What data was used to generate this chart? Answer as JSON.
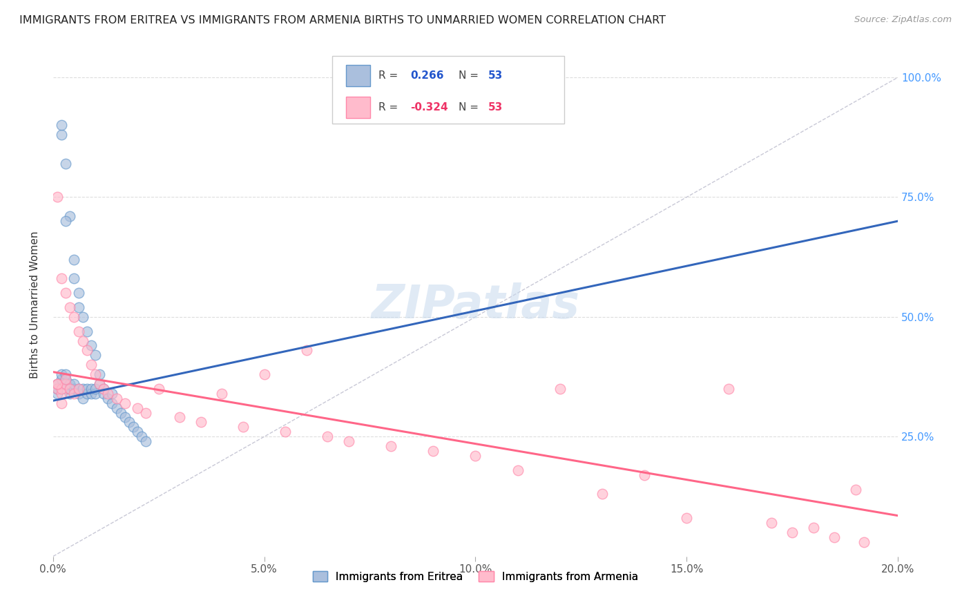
{
  "title": "IMMIGRANTS FROM ERITREA VS IMMIGRANTS FROM ARMENIA BIRTHS TO UNMARRIED WOMEN CORRELATION CHART",
  "source": "Source: ZipAtlas.com",
  "ylabel": "Births to Unmarried Women",
  "xlim": [
    0.0,
    0.2
  ],
  "ylim": [
    0.0,
    1.05
  ],
  "xtick_vals": [
    0.0,
    0.05,
    0.1,
    0.15,
    0.2
  ],
  "xticklabels": [
    "0.0%",
    "5.0%",
    "10.0%",
    "15.0%",
    "20.0%"
  ],
  "ytick_vals": [
    0.25,
    0.5,
    0.75,
    1.0
  ],
  "yticklabels_right": [
    "25.0%",
    "50.0%",
    "75.0%",
    "100.0%"
  ],
  "legend_labels": [
    "Immigrants from Eritrea",
    "Immigrants from Armenia"
  ],
  "R_blue": "0.266",
  "R_pink": "-0.324",
  "N_blue": "53",
  "N_pink": "53",
  "blue_fill": "#AABFDD",
  "blue_edge": "#6699CC",
  "pink_fill": "#FFBBCC",
  "pink_edge": "#FF88AA",
  "blue_line_color": "#3366BB",
  "pink_line_color": "#FF6688",
  "ref_line_color": "#BBBBCC",
  "watermark": "ZIPatlas",
  "background_color": "#FFFFFF",
  "grid_color": "#DDDDDD",
  "blue_scatter_x": [
    0.001,
    0.001,
    0.002,
    0.002,
    0.002,
    0.002,
    0.003,
    0.003,
    0.003,
    0.003,
    0.003,
    0.004,
    0.004,
    0.004,
    0.004,
    0.005,
    0.005,
    0.005,
    0.005,
    0.006,
    0.006,
    0.006,
    0.006,
    0.007,
    0.007,
    0.007,
    0.008,
    0.008,
    0.008,
    0.009,
    0.009,
    0.009,
    0.01,
    0.01,
    0.01,
    0.011,
    0.011,
    0.012,
    0.012,
    0.013,
    0.014,
    0.014,
    0.015,
    0.016,
    0.017,
    0.018,
    0.019,
    0.02,
    0.021,
    0.022,
    0.001,
    0.001,
    0.003
  ],
  "blue_scatter_y": [
    0.35,
    0.36,
    0.88,
    0.9,
    0.37,
    0.38,
    0.82,
    0.35,
    0.36,
    0.37,
    0.38,
    0.34,
    0.35,
    0.36,
    0.71,
    0.62,
    0.35,
    0.36,
    0.58,
    0.55,
    0.34,
    0.35,
    0.52,
    0.33,
    0.5,
    0.35,
    0.34,
    0.47,
    0.35,
    0.44,
    0.34,
    0.35,
    0.42,
    0.34,
    0.35,
    0.38,
    0.36,
    0.35,
    0.34,
    0.33,
    0.32,
    0.34,
    0.31,
    0.3,
    0.29,
    0.28,
    0.27,
    0.26,
    0.25,
    0.24,
    0.34,
    0.35,
    0.7
  ],
  "pink_scatter_x": [
    0.001,
    0.001,
    0.001,
    0.002,
    0.002,
    0.002,
    0.003,
    0.003,
    0.004,
    0.004,
    0.005,
    0.005,
    0.006,
    0.006,
    0.007,
    0.008,
    0.009,
    0.01,
    0.011,
    0.012,
    0.013,
    0.015,
    0.017,
    0.02,
    0.022,
    0.025,
    0.03,
    0.035,
    0.04,
    0.045,
    0.05,
    0.055,
    0.06,
    0.065,
    0.07,
    0.08,
    0.09,
    0.1,
    0.11,
    0.12,
    0.13,
    0.14,
    0.15,
    0.16,
    0.17,
    0.175,
    0.18,
    0.185,
    0.19,
    0.192,
    0.001,
    0.002,
    0.003
  ],
  "pink_scatter_y": [
    0.75,
    0.35,
    0.36,
    0.58,
    0.34,
    0.35,
    0.55,
    0.36,
    0.52,
    0.35,
    0.5,
    0.34,
    0.47,
    0.35,
    0.45,
    0.43,
    0.4,
    0.38,
    0.36,
    0.35,
    0.34,
    0.33,
    0.32,
    0.31,
    0.3,
    0.35,
    0.29,
    0.28,
    0.34,
    0.27,
    0.38,
    0.26,
    0.43,
    0.25,
    0.24,
    0.23,
    0.22,
    0.21,
    0.18,
    0.35,
    0.13,
    0.17,
    0.08,
    0.35,
    0.07,
    0.05,
    0.06,
    0.04,
    0.14,
    0.03,
    0.36,
    0.32,
    0.37
  ],
  "blue_line_x": [
    0.0,
    0.2
  ],
  "blue_line_y": [
    0.325,
    0.7
  ],
  "pink_line_x": [
    0.0,
    0.2
  ],
  "pink_line_y": [
    0.385,
    0.085
  ],
  "ref_line_x": [
    0.0,
    0.2
  ],
  "ref_line_y": [
    0.0,
    1.0
  ]
}
